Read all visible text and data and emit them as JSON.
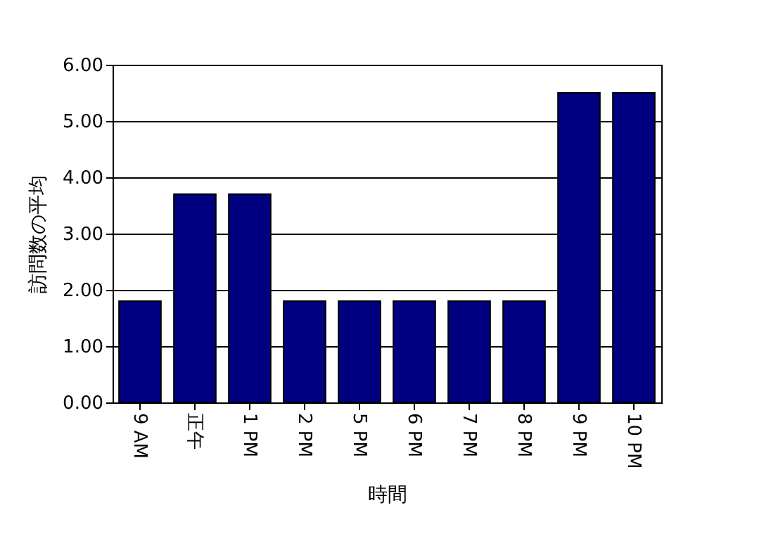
{
  "chart_data": {
    "type": "bar",
    "xlabel": "時間",
    "ylabel": "訪問数の平均",
    "categories": [
      "9 AM",
      "正午",
      "1 PM",
      "2 PM",
      "5 PM",
      "6 PM",
      "7 PM",
      "8 PM",
      "9 PM",
      "10 PM"
    ],
    "values": [
      1.8,
      3.7,
      3.7,
      1.8,
      1.8,
      1.8,
      1.8,
      1.8,
      5.5,
      5.5
    ],
    "color": "#000080",
    "ylim": [
      0,
      6
    ],
    "yticks": [
      {
        "value": 0,
        "label": "0.00"
      },
      {
        "value": 1,
        "label": "1.00"
      },
      {
        "value": 2,
        "label": "2.00"
      },
      {
        "value": 3,
        "label": "3.00"
      },
      {
        "value": 4,
        "label": "4.00"
      },
      {
        "value": 5,
        "label": "5.00"
      },
      {
        "value": 6,
        "label": "6.00"
      }
    ],
    "grid": "y"
  }
}
